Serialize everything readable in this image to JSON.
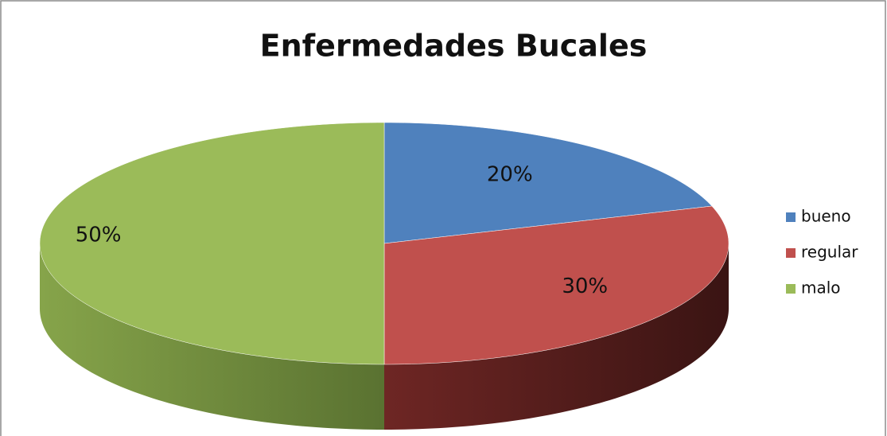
{
  "chart_data": {
    "type": "pie",
    "title": "Enfermedades Bucales",
    "categories": [
      "bueno",
      "regular",
      "malo"
    ],
    "values": [
      20,
      30,
      50
    ],
    "value_labels": [
      "20%",
      "30%",
      "50%"
    ],
    "colors": [
      "#4f81bd",
      "#c0504d",
      "#9bbb59"
    ],
    "legend": "right"
  }
}
